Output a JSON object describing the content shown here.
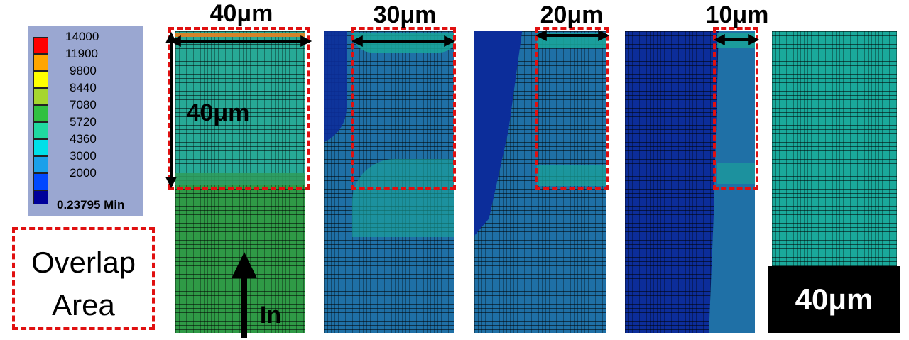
{
  "legend": {
    "values": [
      "14000",
      "11900",
      "9800",
      "8440",
      "7080",
      "5720",
      "4360",
      "3000",
      "2000"
    ],
    "min_label": "0.23795 Min",
    "colors": [
      "#ff0000",
      "#ffa500",
      "#ffff00",
      "#9acd32",
      "#2ecc40",
      "#1fd8a0",
      "#00e5e5",
      "#1fa8e8",
      "#0050ff",
      "#0000aa"
    ]
  },
  "overlap_legend": {
    "line1": "Overlap",
    "line2": "Area"
  },
  "panels": [
    {
      "width_label": "40μm",
      "height_label": "40μm"
    },
    {
      "width_label": "30μm"
    },
    {
      "width_label": "20μm"
    },
    {
      "width_label": "10μm"
    }
  ],
  "input_label": "In",
  "reference_label": "40μm",
  "colors": {
    "green": "#2e9a47",
    "teal_light": "#20b4a2",
    "steel_blue": "#1f6fa8",
    "dark_blue": "#0b2c9a",
    "cyan_teal": "#1aa99b",
    "overlap_dash": "#e01010"
  }
}
